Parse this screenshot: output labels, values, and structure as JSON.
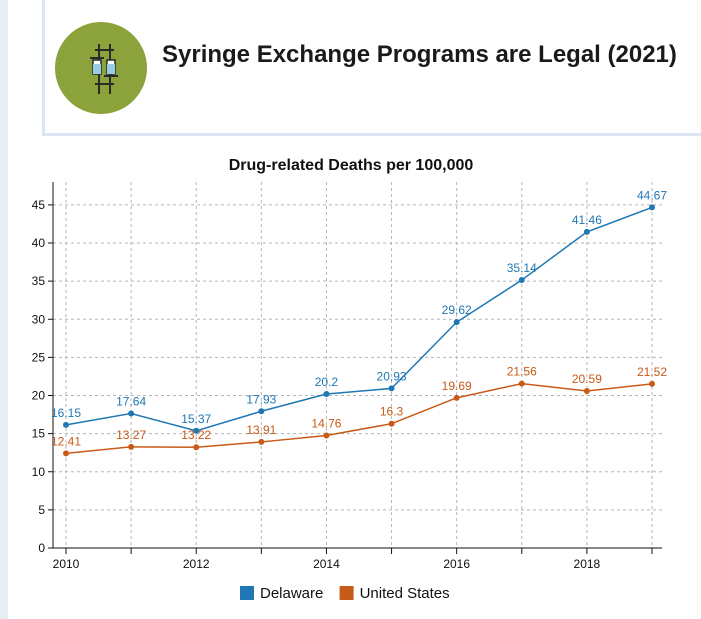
{
  "header": {
    "title": "Syringe Exchange Programs are Legal (2021)",
    "icon": "syringe-icon",
    "icon_bg_color": "#8ba33a"
  },
  "chart_data": {
    "type": "line",
    "title": "Drug-related Deaths per 100,000",
    "xlabel": "",
    "ylabel": "",
    "x": [
      2010,
      2011,
      2012,
      2013,
      2014,
      2015,
      2016,
      2017,
      2018,
      2019
    ],
    "x_tick_labels": [
      "2010",
      "2012",
      "2014",
      "2016",
      "2018"
    ],
    "y_ticks": [
      0,
      5,
      10,
      15,
      20,
      25,
      30,
      35,
      40,
      45
    ],
    "xlim": [
      2010,
      2019
    ],
    "ylim": [
      0,
      48
    ],
    "grid": true,
    "legend_position": "bottom",
    "series": [
      {
        "name": "Delaware",
        "color": "#1f77b4",
        "values": [
          16.15,
          17.64,
          15.37,
          17.93,
          20.2,
          20.93,
          29.62,
          35.14,
          41.46,
          44.67
        ],
        "labels": [
          "16.15",
          "17.64",
          "15.37",
          "17.93",
          "20.2",
          "20.93",
          "29.62",
          "35.14",
          "41.46",
          "44.67"
        ]
      },
      {
        "name": "United States",
        "color": "#c85a17",
        "values": [
          12.41,
          13.27,
          13.22,
          13.91,
          14.76,
          16.3,
          19.69,
          21.56,
          20.59,
          21.52
        ],
        "labels": [
          "12.41",
          "13.27",
          "13.22",
          "13.91",
          "14.76",
          "16.3",
          "19.69",
          "21.56",
          "20.59",
          "21.52"
        ]
      }
    ]
  }
}
